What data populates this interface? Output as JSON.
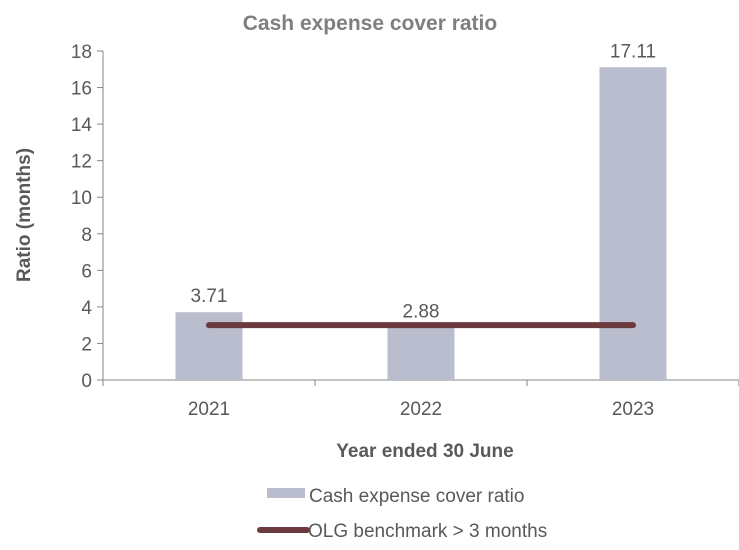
{
  "chart_data": {
    "type": "bar",
    "title": "Cash expense cover ratio",
    "xlabel": "Year ended 30 June",
    "ylabel": "Ratio (months)",
    "categories": [
      "2021",
      "2022",
      "2023"
    ],
    "ylim": [
      0,
      18
    ],
    "yticks": [
      0,
      2,
      4,
      6,
      8,
      10,
      12,
      14,
      16,
      18
    ],
    "grid": false,
    "legend_position": "bottom",
    "series": [
      {
        "name": "Cash expense cover ratio",
        "type": "bar",
        "values": [
          3.71,
          2.88,
          17.11
        ],
        "data_labels": [
          "3.71",
          "2.88",
          "17.11"
        ],
        "color": "#babdcd"
      },
      {
        "name": "OLG benchmark > 3 months",
        "type": "line",
        "values": [
          3,
          3,
          3
        ],
        "color": "#6b3a3e"
      }
    ]
  }
}
